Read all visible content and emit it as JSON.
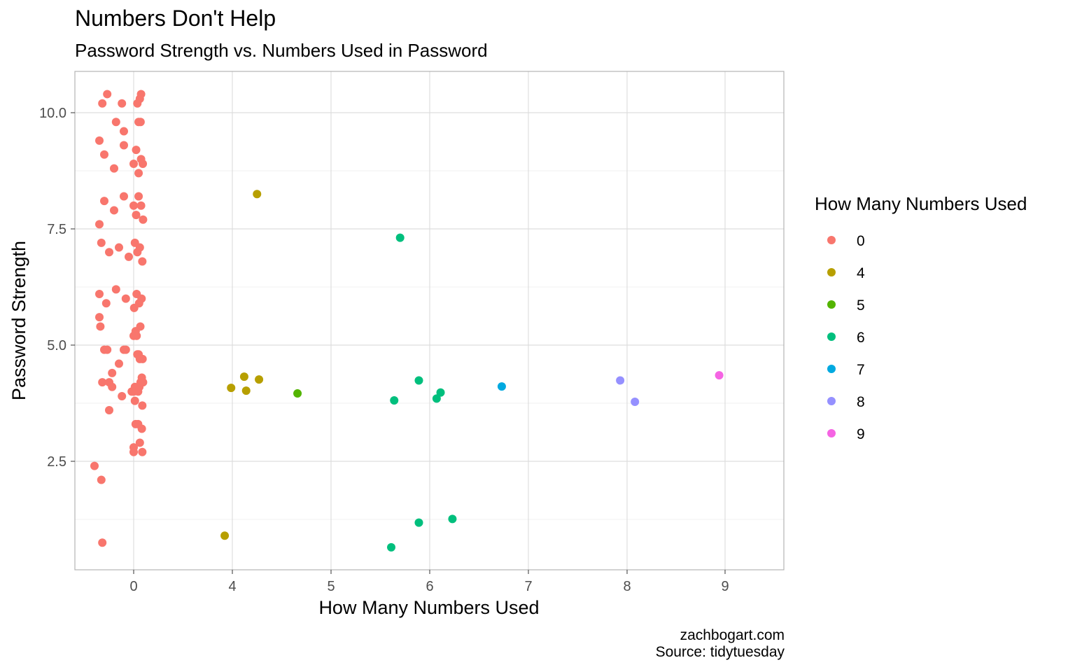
{
  "chart_data": {
    "type": "scatter",
    "title": "Numbers Don't Help",
    "subtitle": "Password Strength vs. Numbers Used in Password",
    "xlabel": "How Many Numbers Used",
    "ylabel": "Password Strength",
    "x_ticks": [
      {
        "label": "0",
        "value": 0
      },
      {
        "label": "4",
        "value": 4
      },
      {
        "label": "5",
        "value": 5
      },
      {
        "label": "6",
        "value": 6
      },
      {
        "label": "7",
        "value": 7
      },
      {
        "label": "8",
        "value": 8
      },
      {
        "label": "9",
        "value": 9
      }
    ],
    "y_ticks": [
      "2.5",
      "5.0",
      "7.5",
      "10.0"
    ],
    "ylim": [
      0.55,
      10.9
    ],
    "grid": true,
    "legend": {
      "title": "How Many Numbers Used",
      "position": "right",
      "entries": [
        {
          "label": "0",
          "color": "#F8766D"
        },
        {
          "label": "4",
          "color": "#B79F00"
        },
        {
          "label": "5",
          "color": "#53B400"
        },
        {
          "label": "6",
          "color": "#00BF7D"
        },
        {
          "label": "7",
          "color": "#00A9E0"
        },
        {
          "label": "8",
          "color": "#9590FF"
        },
        {
          "label": "9",
          "color": "#F564E3"
        }
      ]
    },
    "series": [
      {
        "name": "0",
        "color": "#F8766D",
        "points": [
          [
            -0.35,
            7.6
          ],
          [
            -0.3,
            8.1
          ],
          [
            -0.2,
            7.9
          ],
          [
            -0.1,
            8.2
          ],
          [
            0.0,
            8.0
          ],
          [
            0.1,
            7.8
          ],
          [
            0.2,
            8.2
          ],
          [
            0.3,
            8.0
          ],
          [
            0.38,
            7.7
          ],
          [
            -0.33,
            7.2
          ],
          [
            -0.25,
            7.0
          ],
          [
            -0.15,
            7.1
          ],
          [
            -0.05,
            6.9
          ],
          [
            0.05,
            7.2
          ],
          [
            0.15,
            7.0
          ],
          [
            0.25,
            7.1
          ],
          [
            0.35,
            6.8
          ],
          [
            -0.35,
            6.1
          ],
          [
            -0.28,
            5.9
          ],
          [
            -0.18,
            6.2
          ],
          [
            -0.08,
            6.0
          ],
          [
            0.02,
            5.8
          ],
          [
            0.12,
            6.1
          ],
          [
            0.22,
            5.9
          ],
          [
            0.32,
            6.0
          ],
          [
            -0.35,
            9.4
          ],
          [
            -0.3,
            9.1
          ],
          [
            -0.2,
            8.8
          ],
          [
            -0.1,
            9.3
          ],
          [
            0.0,
            8.9
          ],
          [
            0.1,
            9.2
          ],
          [
            0.2,
            8.7
          ],
          [
            0.3,
            9.0
          ],
          [
            0.37,
            8.9
          ],
          [
            -0.32,
            10.2
          ],
          [
            -0.27,
            10.4
          ],
          [
            -0.18,
            9.8
          ],
          [
            -0.12,
            10.2
          ],
          [
            -0.1,
            9.6
          ],
          [
            0.15,
            10.2
          ],
          [
            0.2,
            9.8
          ],
          [
            0.25,
            10.3
          ],
          [
            0.28,
            9.8
          ],
          [
            0.3,
            10.4
          ],
          [
            -0.35,
            5.6
          ],
          [
            -0.34,
            5.4
          ],
          [
            -0.3,
            4.9
          ],
          [
            -0.27,
            4.9
          ],
          [
            -0.22,
            4.4
          ],
          [
            -0.15,
            4.6
          ],
          [
            -0.1,
            4.9
          ],
          [
            -0.08,
            4.9
          ],
          [
            0.0,
            5.2
          ],
          [
            0.08,
            5.3
          ],
          [
            0.12,
            5.2
          ],
          [
            0.15,
            4.8
          ],
          [
            0.2,
            4.8
          ],
          [
            0.25,
            4.7
          ],
          [
            0.27,
            5.4
          ],
          [
            0.36,
            4.7
          ],
          [
            -0.32,
            4.2
          ],
          [
            -0.25,
            4.2
          ],
          [
            -0.22,
            4.1
          ],
          [
            -0.12,
            3.9
          ],
          [
            -0.02,
            4.0
          ],
          [
            0.0,
            4.0
          ],
          [
            0.05,
            4.1
          ],
          [
            0.05,
            3.8
          ],
          [
            0.18,
            4.0
          ],
          [
            0.23,
            4.1
          ],
          [
            0.28,
            4.2
          ],
          [
            0.33,
            4.3
          ],
          [
            0.35,
            3.7
          ],
          [
            0.38,
            4.2
          ],
          [
            -0.25,
            3.6
          ],
          [
            0.08,
            3.3
          ],
          [
            0.18,
            3.3
          ],
          [
            0.33,
            3.2
          ],
          [
            0.0,
            2.8
          ],
          [
            0.0,
            2.7
          ],
          [
            0.25,
            2.9
          ],
          [
            0.35,
            2.7
          ],
          [
            -0.4,
            2.4
          ],
          [
            -0.33,
            2.1
          ],
          [
            -0.32,
            0.75
          ]
        ]
      },
      {
        "name": "4",
        "color": "#B79F00",
        "points": [
          [
            4.25,
            8.25
          ],
          [
            3.95,
            4.08
          ],
          [
            4.12,
            4.32
          ],
          [
            4.14,
            4.02
          ],
          [
            4.27,
            4.26
          ],
          [
            3.69,
            0.9
          ]
        ]
      },
      {
        "name": "5",
        "color": "#53B400",
        "points": [
          [
            4.66,
            3.96
          ]
        ]
      },
      {
        "name": "6",
        "color": "#00BF7D",
        "points": [
          [
            5.7,
            7.31
          ],
          [
            5.89,
            4.24
          ],
          [
            6.11,
            3.98
          ],
          [
            6.07,
            3.85
          ],
          [
            5.64,
            3.81
          ],
          [
            5.89,
            1.18
          ],
          [
            6.23,
            1.26
          ],
          [
            5.61,
            0.65
          ]
        ]
      },
      {
        "name": "7",
        "color": "#00A9E0",
        "points": [
          [
            6.73,
            4.11
          ]
        ]
      },
      {
        "name": "8",
        "color": "#9590FF",
        "points": [
          [
            7.93,
            4.24
          ],
          [
            8.08,
            3.78
          ]
        ]
      },
      {
        "name": "9",
        "color": "#F564E3",
        "points": [
          [
            8.94,
            4.35
          ]
        ]
      }
    ]
  },
  "caption": {
    "line1": "zachbogart.com",
    "line2": "Source: tidytuesday"
  }
}
